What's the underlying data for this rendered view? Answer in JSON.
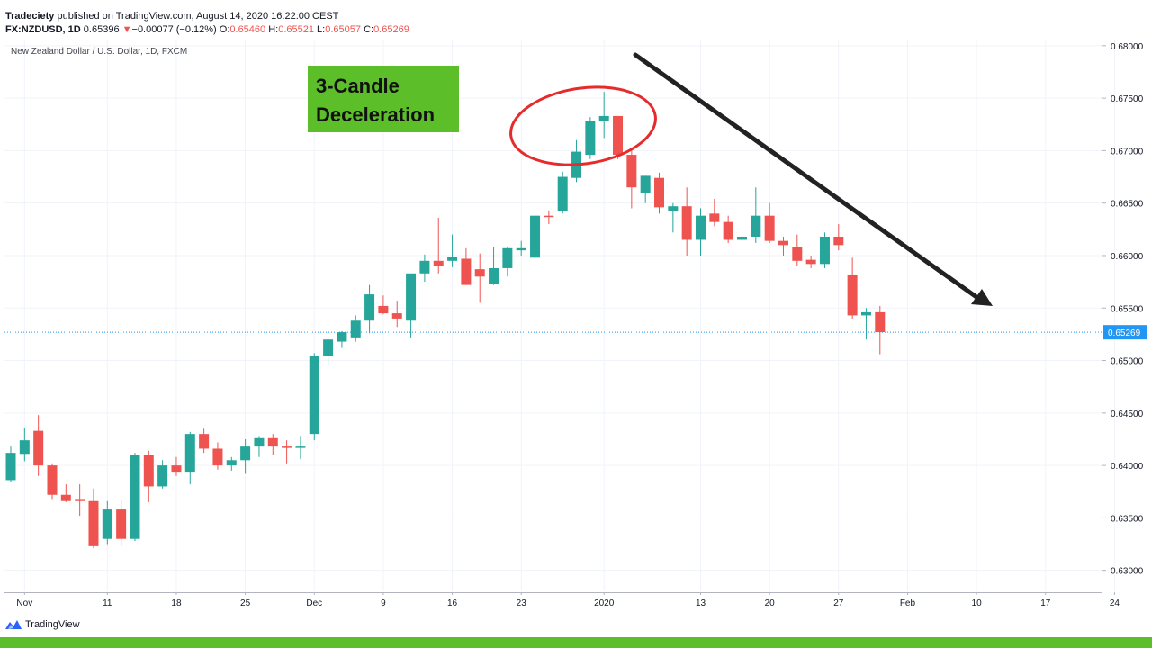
{
  "header": {
    "publisher": "Tradeciety",
    "published_text": " published on TradingView.com, August 14, 2020 16:22:00 CEST",
    "symbol": "FX:NZDUSD, 1D",
    "last_price": "0.65396",
    "change_arrow": "▼",
    "change": "−0.00077 (−0.12%)",
    "o_label": "O:",
    "o_value": "0.65460",
    "h_label": "H:",
    "h_value": "0.65521",
    "l_label": "L:",
    "l_value": "0.65057",
    "c_label": "C:",
    "c_value": "0.65269"
  },
  "symbol_title": "New Zealand Dollar / U.S. Dollar, 1D, FXCM",
  "annotation": {
    "line1": "3-Candle",
    "line2": "Deceleration",
    "box_color": "#5cbf2a",
    "circle_color": "#e52b2b",
    "arrow_color": "#222222"
  },
  "footer": {
    "brand": "TradingView",
    "bar_color": "#5cbf2a"
  },
  "chart_data": {
    "type": "candlestick",
    "y_axis": {
      "min": 0.628,
      "max": 0.6805,
      "ticks": [
        "0.68000",
        "0.67500",
        "0.67000",
        "0.66500",
        "0.66000",
        "0.65500",
        "0.65000",
        "0.64500",
        "0.64000",
        "0.63500",
        "0.63000"
      ]
    },
    "x_axis": {
      "ticks": [
        {
          "label": "Nov",
          "index": 1
        },
        {
          "label": "11",
          "index": 7
        },
        {
          "label": "18",
          "index": 12
        },
        {
          "label": "25",
          "index": 17
        },
        {
          "label": "Dec",
          "index": 22
        },
        {
          "label": "9",
          "index": 27
        },
        {
          "label": "16",
          "index": 32
        },
        {
          "label": "23",
          "index": 37
        },
        {
          "label": "2020",
          "index": 43
        },
        {
          "label": "13",
          "index": 50
        },
        {
          "label": "20",
          "index": 55
        },
        {
          "label": "27",
          "index": 60
        },
        {
          "label": "Feb",
          "index": 65
        },
        {
          "label": "10",
          "index": 70
        },
        {
          "label": "17",
          "index": 75
        },
        {
          "label": "24",
          "index": 80
        }
      ]
    },
    "last_price_line": {
      "value": 0.65269,
      "label": "0.65269",
      "color": "#2196f3"
    },
    "up_color": "#26a69a",
    "down_color": "#ef5350",
    "candles": [
      {
        "o": 0.6386,
        "h": 0.6418,
        "l": 0.6384,
        "c": 0.6412
      },
      {
        "o": 0.6411,
        "h": 0.6436,
        "l": 0.6404,
        "c": 0.6424
      },
      {
        "o": 0.6433,
        "h": 0.6448,
        "l": 0.639,
        "c": 0.64
      },
      {
        "o": 0.64,
        "h": 0.6402,
        "l": 0.6368,
        "c": 0.6372
      },
      {
        "o": 0.6372,
        "h": 0.6382,
        "l": 0.6365,
        "c": 0.6366
      },
      {
        "o": 0.6368,
        "h": 0.6382,
        "l": 0.6352,
        "c": 0.6366
      },
      {
        "o": 0.6366,
        "h": 0.6378,
        "l": 0.6321,
        "c": 0.6323
      },
      {
        "o": 0.633,
        "h": 0.6366,
        "l": 0.6325,
        "c": 0.6358
      },
      {
        "o": 0.6358,
        "h": 0.6367,
        "l": 0.6323,
        "c": 0.633
      },
      {
        "o": 0.633,
        "h": 0.6412,
        "l": 0.6328,
        "c": 0.641
      },
      {
        "o": 0.641,
        "h": 0.6414,
        "l": 0.6365,
        "c": 0.638
      },
      {
        "o": 0.638,
        "h": 0.6405,
        "l": 0.6378,
        "c": 0.64
      },
      {
        "o": 0.64,
        "h": 0.6408,
        "l": 0.639,
        "c": 0.6394
      },
      {
        "o": 0.6394,
        "h": 0.6432,
        "l": 0.6382,
        "c": 0.643
      },
      {
        "o": 0.643,
        "h": 0.6435,
        "l": 0.6412,
        "c": 0.6416
      },
      {
        "o": 0.6416,
        "h": 0.6422,
        "l": 0.6396,
        "c": 0.64
      },
      {
        "o": 0.64,
        "h": 0.6408,
        "l": 0.6395,
        "c": 0.6405
      },
      {
        "o": 0.6405,
        "h": 0.6425,
        "l": 0.6392,
        "c": 0.6418
      },
      {
        "o": 0.6418,
        "h": 0.6428,
        "l": 0.6408,
        "c": 0.6426
      },
      {
        "o": 0.6426,
        "h": 0.643,
        "l": 0.641,
        "c": 0.6418
      },
      {
        "o": 0.6418,
        "h": 0.6424,
        "l": 0.6402,
        "c": 0.6417
      },
      {
        "o": 0.6418,
        "h": 0.6428,
        "l": 0.6406,
        "c": 0.6418
      },
      {
        "o": 0.643,
        "h": 0.6507,
        "l": 0.6424,
        "c": 0.6504
      },
      {
        "o": 0.6504,
        "h": 0.6522,
        "l": 0.6495,
        "c": 0.652
      },
      {
        "o": 0.6518,
        "h": 0.6528,
        "l": 0.6512,
        "c": 0.6527
      },
      {
        "o": 0.6522,
        "h": 0.6543,
        "l": 0.6518,
        "c": 0.6538
      },
      {
        "o": 0.6538,
        "h": 0.6572,
        "l": 0.6526,
        "c": 0.6563
      },
      {
        "o": 0.6552,
        "h": 0.6562,
        "l": 0.6544,
        "c": 0.6545
      },
      {
        "o": 0.6545,
        "h": 0.6557,
        "l": 0.6532,
        "c": 0.654
      },
      {
        "o": 0.6538,
        "h": 0.6578,
        "l": 0.6522,
        "c": 0.6583
      },
      {
        "o": 0.6583,
        "h": 0.6601,
        "l": 0.6575,
        "c": 0.6595
      },
      {
        "o": 0.6595,
        "h": 0.6636,
        "l": 0.6583,
        "c": 0.659
      },
      {
        "o": 0.6595,
        "h": 0.662,
        "l": 0.6589,
        "c": 0.6599
      },
      {
        "o": 0.6597,
        "h": 0.6607,
        "l": 0.6572,
        "c": 0.6572
      },
      {
        "o": 0.6587,
        "h": 0.6602,
        "l": 0.6555,
        "c": 0.658
      },
      {
        "o": 0.6573,
        "h": 0.6608,
        "l": 0.6572,
        "c": 0.6588
      },
      {
        "o": 0.6588,
        "h": 0.6608,
        "l": 0.658,
        "c": 0.6607
      },
      {
        "o": 0.6605,
        "h": 0.6614,
        "l": 0.66,
        "c": 0.6607
      },
      {
        "o": 0.6598,
        "h": 0.664,
        "l": 0.6597,
        "c": 0.6638
      },
      {
        "o": 0.6638,
        "h": 0.6643,
        "l": 0.663,
        "c": 0.6637
      },
      {
        "o": 0.6642,
        "h": 0.668,
        "l": 0.664,
        "c": 0.6675
      },
      {
        "o": 0.6674,
        "h": 0.671,
        "l": 0.667,
        "c": 0.6699
      },
      {
        "o": 0.6696,
        "h": 0.6732,
        "l": 0.6692,
        "c": 0.6728
      },
      {
        "o": 0.6728,
        "h": 0.6756,
        "l": 0.6712,
        "c": 0.6733
      },
      {
        "o": 0.6733,
        "h": 0.6733,
        "l": 0.6692,
        "c": 0.6696
      },
      {
        "o": 0.6696,
        "h": 0.6702,
        "l": 0.6645,
        "c": 0.6665
      },
      {
        "o": 0.666,
        "h": 0.6676,
        "l": 0.665,
        "c": 0.6676
      },
      {
        "o": 0.6674,
        "h": 0.6679,
        "l": 0.664,
        "c": 0.6646
      },
      {
        "o": 0.6642,
        "h": 0.665,
        "l": 0.6622,
        "c": 0.6647
      },
      {
        "o": 0.6647,
        "h": 0.6665,
        "l": 0.66,
        "c": 0.6615
      },
      {
        "o": 0.6615,
        "h": 0.6645,
        "l": 0.66,
        "c": 0.6638
      },
      {
        "o": 0.664,
        "h": 0.6654,
        "l": 0.6628,
        "c": 0.6632
      },
      {
        "o": 0.6632,
        "h": 0.6638,
        "l": 0.6612,
        "c": 0.6615
      },
      {
        "o": 0.6615,
        "h": 0.663,
        "l": 0.6582,
        "c": 0.6618
      },
      {
        "o": 0.6618,
        "h": 0.6665,
        "l": 0.6612,
        "c": 0.6638
      },
      {
        "o": 0.6638,
        "h": 0.665,
        "l": 0.6612,
        "c": 0.6614
      },
      {
        "o": 0.6614,
        "h": 0.6618,
        "l": 0.66,
        "c": 0.661
      },
      {
        "o": 0.6608,
        "h": 0.662,
        "l": 0.659,
        "c": 0.6595
      },
      {
        "o": 0.6596,
        "h": 0.66,
        "l": 0.6588,
        "c": 0.6592
      },
      {
        "o": 0.6592,
        "h": 0.6622,
        "l": 0.6588,
        "c": 0.6618
      },
      {
        "o": 0.6618,
        "h": 0.663,
        "l": 0.6605,
        "c": 0.661
      },
      {
        "o": 0.6582,
        "h": 0.6598,
        "l": 0.654,
        "c": 0.6543
      },
      {
        "o": 0.6543,
        "h": 0.655,
        "l": 0.652,
        "c": 0.6546
      },
      {
        "o": 0.6546,
        "h": 0.6552,
        "l": 0.6506,
        "c": 0.6527
      }
    ]
  }
}
